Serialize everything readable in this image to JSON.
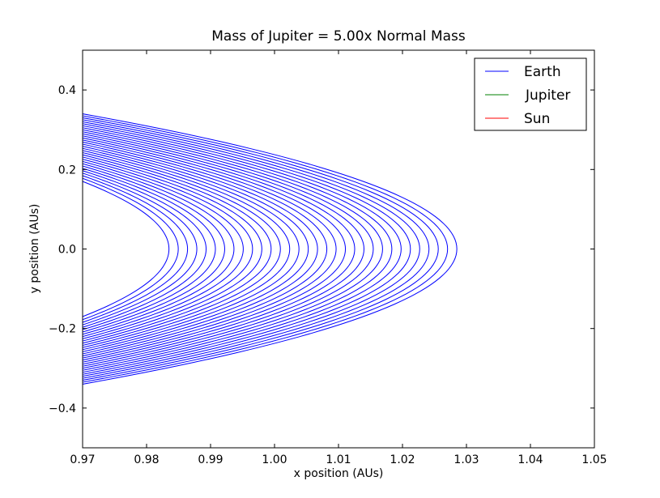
{
  "chart_data": {
    "type": "line",
    "title": "Mass of Jupiter = 5.00x Normal Mass",
    "xlabel": "x position (AUs)",
    "ylabel": "y position (AUs)",
    "xlim": [
      0.97,
      1.05
    ],
    "ylim": [
      -0.5,
      0.5
    ],
    "x_ticks": [
      0.97,
      0.98,
      0.99,
      1.0,
      1.01,
      1.02,
      1.03,
      1.04,
      1.05
    ],
    "x_tick_labels": [
      "0.97",
      "0.98",
      "0.99",
      "1.00",
      "1.01",
      "1.02",
      "1.03",
      "1.04",
      "1.05"
    ],
    "y_ticks": [
      -0.4,
      -0.2,
      0.0,
      0.2,
      0.4
    ],
    "y_tick_labels": [
      "−0.4",
      "−0.2",
      "0.0",
      "0.2",
      "0.4"
    ],
    "grid": false,
    "legend_position": "top-right",
    "series": [
      {
        "name": "Earth",
        "color": "#0000ff",
        "orbit_model": "x = c - a*y^2, one arc per orbit",
        "vertex_x_range": [
          0.9835,
          1.0285
        ],
        "visible_y_at_left_edge": [
          0.17,
          0.34
        ],
        "orbit_count": 32
      },
      {
        "name": "Jupiter",
        "color": "#008000",
        "values": []
      },
      {
        "name": "Sun",
        "color": "#ff0000",
        "values": []
      }
    ]
  }
}
